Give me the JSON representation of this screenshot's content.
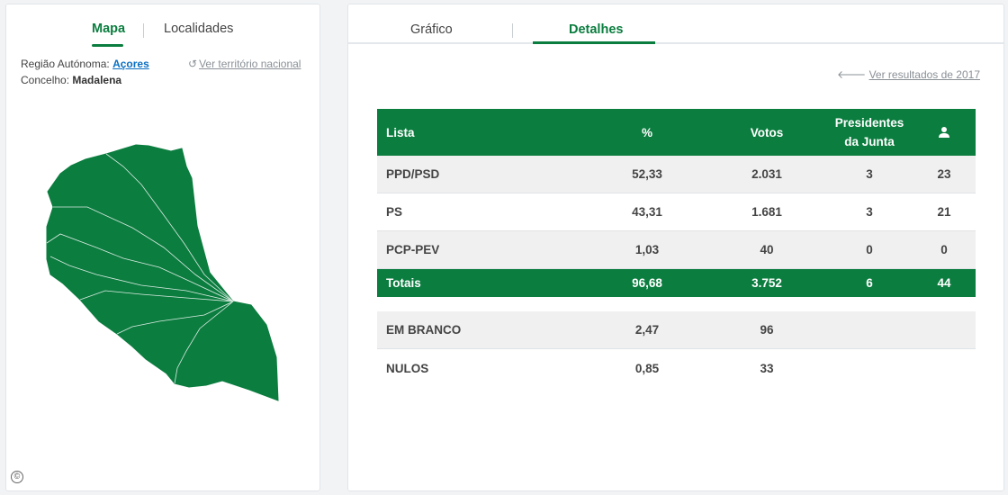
{
  "left": {
    "tabs": [
      "Mapa",
      "Localidades"
    ],
    "region_label": "Região Autónoma:",
    "region_value": "Açores",
    "concelho_label": "Concelho:",
    "concelho_value": "Madalena",
    "ver_territorio": "Ver território nacional",
    "copyright_symbol": "©"
  },
  "right": {
    "tabs": [
      "Gráfico",
      "Detalhes"
    ],
    "active_tab": "Detalhes",
    "ver_resultados": "Ver resultados de 2017"
  },
  "table": {
    "headers": {
      "lista": "Lista",
      "pct": "%",
      "votos": "Votos",
      "presidentes_line1": "Presidentes",
      "presidentes_line2": "da Junta",
      "mandatos_icon": "person-icon"
    },
    "rows": [
      {
        "lista": "PPD/PSD",
        "pct": "52,33",
        "votos": "2.031",
        "presidentes": "3",
        "mandatos": "23"
      },
      {
        "lista": "PS",
        "pct": "43,31",
        "votos": "1.681",
        "presidentes": "3",
        "mandatos": "21"
      },
      {
        "lista": "PCP-PEV",
        "pct": "1,03",
        "votos": "40",
        "presidentes": "0",
        "mandatos": "0"
      }
    ],
    "totals": {
      "lista": "Totais",
      "pct": "96,68",
      "votos": "3.752",
      "presidentes": "6",
      "mandatos": "44"
    },
    "extras": [
      {
        "lista": "EM BRANCO",
        "pct": "2,47",
        "votos": "96"
      },
      {
        "lista": "NULOS",
        "pct": "0,85",
        "votos": "33"
      }
    ]
  },
  "colors": {
    "accent": "#0b7d3f",
    "link": "#0a6fc2",
    "muted": "#8a9096"
  }
}
